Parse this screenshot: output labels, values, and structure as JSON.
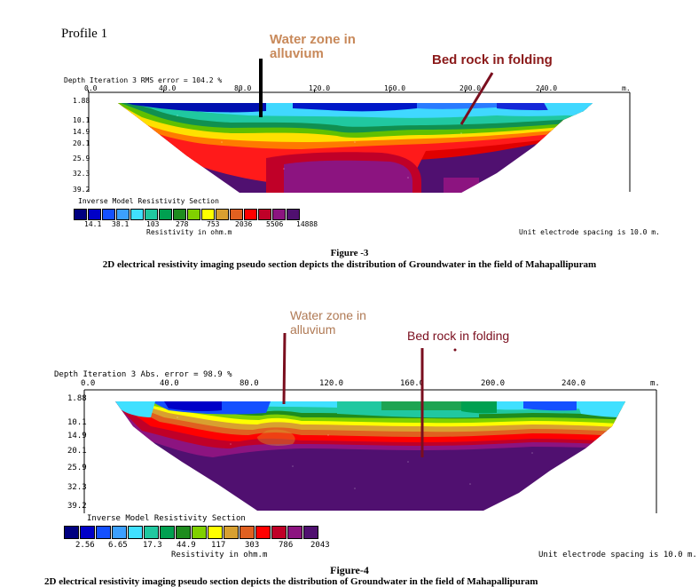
{
  "profile_label": "Profile 1",
  "figures": [
    {
      "id": "fig3",
      "header": "Depth  Iteration 3 RMS error = 104.2 %",
      "x_ticks": [
        "0.0",
        "40.0",
        "80.0",
        "120.0",
        "160.0",
        "200.0",
        "240.0"
      ],
      "x_unit": "m.",
      "depths": [
        "1.88",
        "10.1",
        "14.9",
        "20.1",
        "25.9",
        "32.3",
        "39.2"
      ],
      "annotation_water": "Water zone in\nalluvium",
      "annotation_bedrock": "Bed rock in folding",
      "water_color": "#c8895a",
      "bedrock_color": "#8b1a1a",
      "legend_title": "Inverse Model Resistivity Section",
      "legend_values": [
        "14.1",
        "38.1",
        "103",
        "278",
        "753",
        "2036",
        "5506",
        "14888"
      ],
      "legend_unit": "Resistivity in ohm.m",
      "spacing": "Unit electrode spacing is 10.0 m.",
      "caption_title": "Figure -3",
      "caption_text": "2D electrical resistivity imaging pseudo section depicts the distribution of Groundwater in the field of Mahapallipuram"
    },
    {
      "id": "fig4",
      "header": "Depth  Iteration 3 Abs. error = 98.9 %",
      "x_ticks": [
        "0.0",
        "40.0",
        "80.0",
        "120.0",
        "160.0",
        "200.0",
        "240.0"
      ],
      "x_unit": "m.",
      "depths": [
        "1.88",
        "10.1",
        "14.9",
        "20.1",
        "25.9",
        "32.3",
        "39.2"
      ],
      "annotation_water": "Water zone in\nalluvium",
      "annotation_bedrock": "Bed rock in folding",
      "water_color": "#b07a55",
      "bedrock_color": "#7a0e1e",
      "legend_title": "Inverse Model Resistivity Section",
      "legend_values": [
        "2.56",
        "6.65",
        "17.3",
        "44.9",
        "117",
        "303",
        "786",
        "2043"
      ],
      "legend_unit": "Resistivity in ohm.m",
      "spacing": "Unit electrode spacing is 10.0 m.",
      "caption_title": "Figure-4",
      "caption_text": "2D electrical resistivity imaging pseudo section depicts the distribution of Groundwater in the field of Mahapallipuram"
    }
  ],
  "palette": [
    "#000080",
    "#0000c8",
    "#1450ff",
    "#3ca0ff",
    "#40e0ff",
    "#20c8a0",
    "#00a050",
    "#1e8c1e",
    "#80d000",
    "#ffff00",
    "#d8a030",
    "#e06020",
    "#ff0000",
    "#c00028",
    "#8c1480",
    "#501070"
  ]
}
